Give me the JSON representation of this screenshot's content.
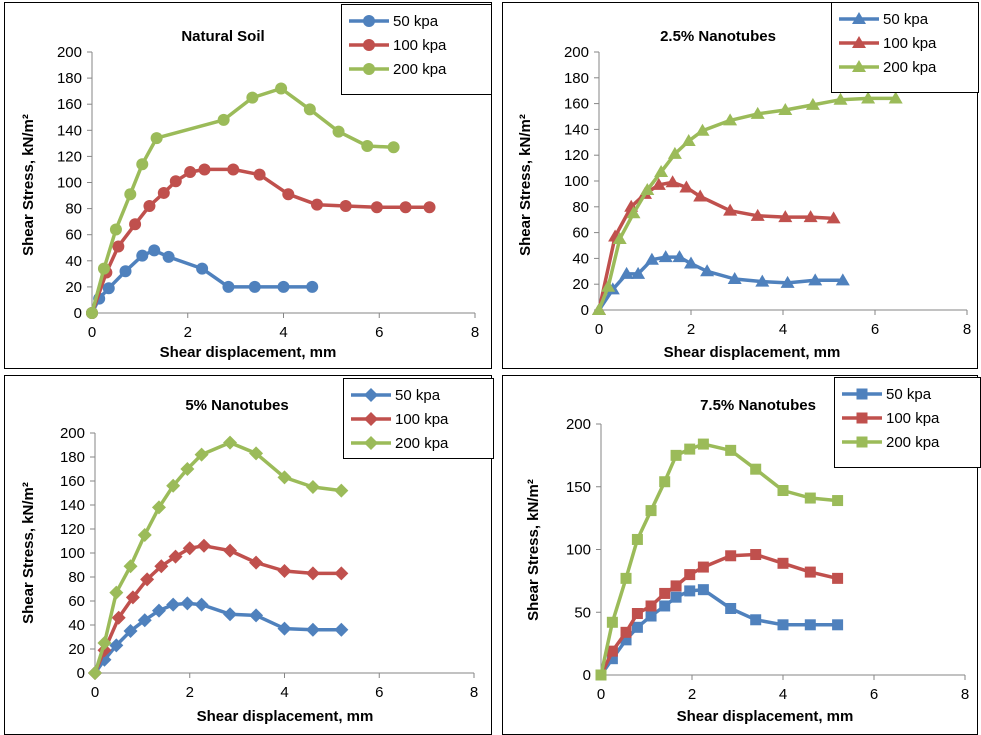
{
  "colors": {
    "s50": "#4F81BD",
    "s100": "#C0504D",
    "s200": "#9BBB59"
  },
  "chart_data": [
    {
      "type": "line",
      "title": "Natural Soil",
      "xlabel": "Shear displacement, mm",
      "ylabel": "Shear Stress, kN/m²",
      "xlim": [
        0,
        8
      ],
      "ylim": [
        0,
        200
      ],
      "xticks": [
        0,
        2,
        4,
        6,
        8
      ],
      "yticks": [
        0,
        20,
        40,
        60,
        80,
        100,
        120,
        140,
        160,
        180,
        200
      ],
      "marker": "circle",
      "legend_position": "top-right",
      "series": [
        {
          "name": "50 kpa",
          "x": [
            0,
            0.15,
            0.35,
            0.7,
            1.05,
            1.3,
            1.6,
            2.3,
            2.85,
            3.4,
            4.0,
            4.6
          ],
          "y": [
            0,
            11,
            19,
            32,
            44,
            48,
            43,
            34,
            20,
            20,
            20,
            20
          ]
        },
        {
          "name": "100 kpa",
          "x": [
            0,
            0.3,
            0.55,
            0.9,
            1.2,
            1.5,
            1.75,
            2.05,
            2.35,
            2.95,
            3.5,
            4.1,
            4.7,
            5.3,
            5.95,
            6.55,
            7.05
          ],
          "y": [
            0,
            31,
            51,
            68,
            82,
            92,
            101,
            108,
            110,
            110,
            106,
            91,
            83,
            82,
            81,
            81,
            81
          ]
        },
        {
          "name": "200 kpa",
          "x": [
            0,
            0.25,
            0.5,
            0.8,
            1.05,
            1.35,
            2.75,
            3.35,
            3.95,
            4.55,
            5.15,
            5.75,
            6.3
          ],
          "y": [
            0,
            34,
            64,
            91,
            114,
            134,
            148,
            165,
            172,
            156,
            139,
            128,
            127
          ]
        }
      ]
    },
    {
      "type": "line",
      "title": "2.5% Nanotubes",
      "xlabel": "Shear displacement, mm",
      "ylabel": "Shear Stress, kN/m²",
      "xlim": [
        0,
        8
      ],
      "ylim": [
        0,
        200
      ],
      "xticks": [
        0,
        2,
        4,
        6,
        8
      ],
      "yticks": [
        0,
        20,
        40,
        60,
        80,
        100,
        120,
        140,
        160,
        180,
        200
      ],
      "marker": "triangle",
      "legend_position": "top-right",
      "series": [
        {
          "name": "50 kpa",
          "x": [
            0,
            0.3,
            0.6,
            0.85,
            1.15,
            1.45,
            1.75,
            2.0,
            2.35,
            2.95,
            3.55,
            4.1,
            4.7,
            5.3
          ],
          "y": [
            0,
            16,
            28,
            28,
            39,
            41,
            41,
            36,
            30,
            24,
            22,
            21,
            23,
            23
          ]
        },
        {
          "name": "100 kpa",
          "x": [
            0,
            0.35,
            0.7,
            1.0,
            1.3,
            1.6,
            1.9,
            2.2,
            2.85,
            3.45,
            4.05,
            4.6,
            5.1
          ],
          "y": [
            0,
            57,
            80,
            90,
            97,
            99,
            95,
            88,
            77,
            73,
            72,
            72,
            71
          ]
        },
        {
          "name": "200 kpa",
          "x": [
            0,
            0.2,
            0.45,
            0.75,
            1.05,
            1.35,
            1.65,
            1.95,
            2.25,
            2.85,
            3.45,
            4.05,
            4.65,
            5.25,
            5.85,
            6.45
          ],
          "y": [
            0,
            18,
            55,
            75,
            93,
            107,
            121,
            131,
            139,
            147,
            152,
            155,
            159,
            163,
            164,
            164
          ]
        }
      ]
    },
    {
      "type": "line",
      "title": "5% Nanotubes",
      "xlabel": "Shear displacement, mm",
      "ylabel": "Shear Stress, kN/m²",
      "xlim": [
        0,
        8
      ],
      "ylim": [
        0,
        200
      ],
      "xticks": [
        0,
        2,
        4,
        6,
        8
      ],
      "yticks": [
        0,
        20,
        40,
        60,
        80,
        100,
        120,
        140,
        160,
        180,
        200
      ],
      "marker": "diamond",
      "legend_position": "top-right",
      "series": [
        {
          "name": "50 kpa",
          "x": [
            0,
            0.2,
            0.45,
            0.75,
            1.05,
            1.35,
            1.65,
            1.95,
            2.25,
            2.85,
            3.4,
            4.0,
            4.6,
            5.2
          ],
          "y": [
            0,
            11,
            23,
            35,
            44,
            52,
            57,
            58,
            57,
            49,
            48,
            37,
            36,
            36
          ]
        },
        {
          "name": "100 kpa",
          "x": [
            0,
            0.2,
            0.5,
            0.8,
            1.1,
            1.4,
            1.7,
            2.0,
            2.3,
            2.85,
            3.4,
            4.0,
            4.6,
            5.2
          ],
          "y": [
            0,
            19,
            46,
            63,
            78,
            89,
            97,
            104,
            106,
            102,
            92,
            85,
            83,
            83
          ]
        },
        {
          "name": "200 kpa",
          "x": [
            0,
            0.2,
            0.45,
            0.75,
            1.05,
            1.35,
            1.65,
            1.95,
            2.25,
            2.85,
            3.4,
            4.0,
            4.6,
            5.2
          ],
          "y": [
            0,
            25,
            67,
            89,
            115,
            138,
            156,
            170,
            182,
            192,
            183,
            163,
            155,
            152
          ]
        }
      ]
    },
    {
      "type": "line",
      "title": "7.5% Nanotubes",
      "xlabel": "Shear displacement, mm",
      "ylabel": "Shear Stress, kN/m²",
      "xlim": [
        0,
        8
      ],
      "ylim": [
        0,
        200
      ],
      "xticks": [
        0,
        2,
        4,
        6,
        8
      ],
      "yticks": [
        0,
        50,
        100,
        150,
        200
      ],
      "marker": "square",
      "legend_position": "top-right",
      "series": [
        {
          "name": "50 kpa",
          "x": [
            0,
            0.25,
            0.55,
            0.8,
            1.1,
            1.4,
            1.65,
            1.95,
            2.25,
            2.85,
            3.4,
            4.0,
            4.6,
            5.2
          ],
          "y": [
            0,
            13,
            28,
            38,
            47,
            55,
            62,
            67,
            68,
            53,
            44,
            40,
            40,
            40
          ]
        },
        {
          "name": "100 kpa",
          "x": [
            0,
            0.25,
            0.55,
            0.8,
            1.1,
            1.4,
            1.65,
            1.95,
            2.25,
            2.85,
            3.4,
            4.0,
            4.6,
            5.2
          ],
          "y": [
            0,
            19,
            34,
            49,
            55,
            65,
            71,
            80,
            86,
            95,
            96,
            89,
            82,
            77
          ]
        },
        {
          "name": "200 kpa",
          "x": [
            0,
            0.25,
            0.55,
            0.8,
            1.1,
            1.4,
            1.65,
            1.95,
            2.25,
            2.85,
            3.4,
            4.0,
            4.6,
            5.2
          ],
          "y": [
            0,
            42,
            77,
            108,
            131,
            154,
            175,
            180,
            184,
            179,
            164,
            147,
            141,
            139
          ]
        }
      ]
    }
  ]
}
